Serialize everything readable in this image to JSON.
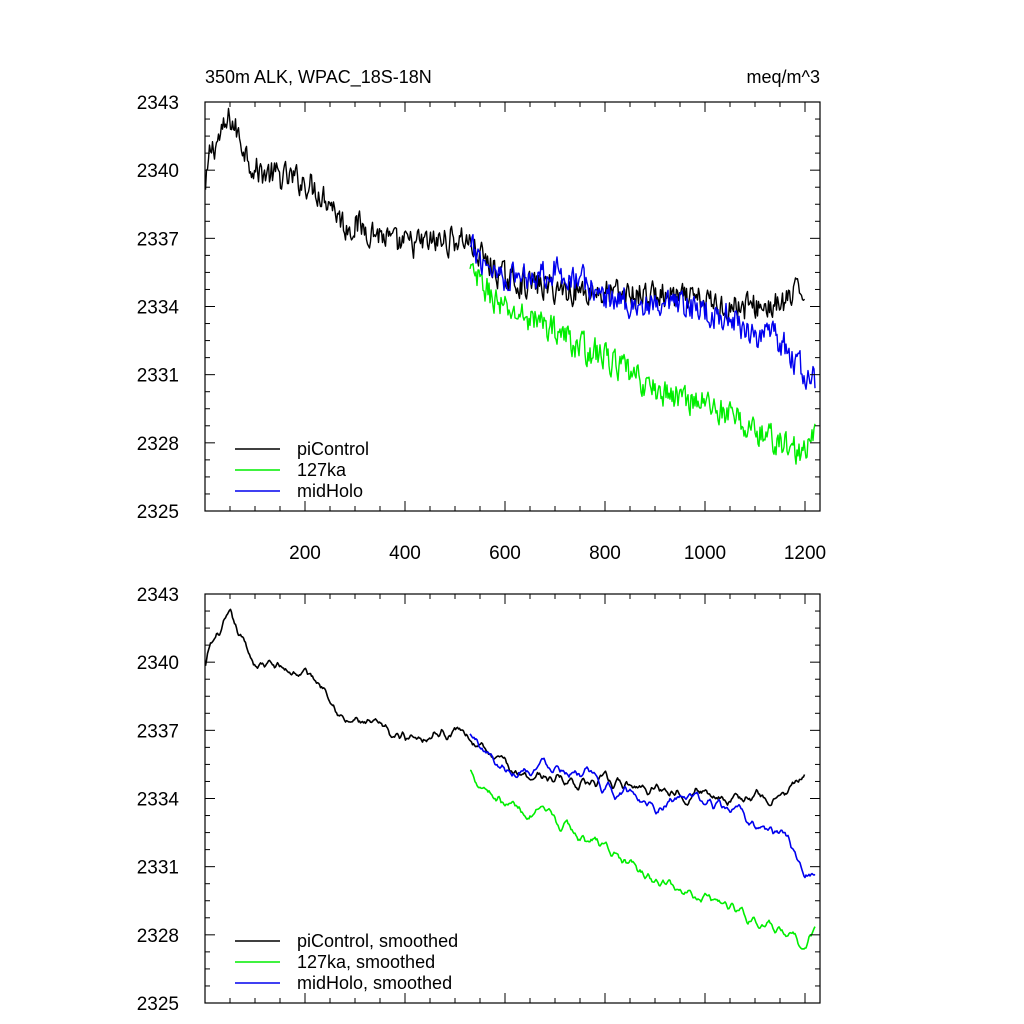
{
  "chart_data": [
    {
      "type": "line",
      "title_left": "350m ALK, WPAC_18S-18N",
      "title_right": "meq/m^3",
      "xlim": [
        0,
        1230
      ],
      "ylim": [
        2325,
        2343
      ],
      "x_ticks": [
        200,
        400,
        600,
        800,
        1000,
        1200
      ],
      "x_tick_labels_shown": true,
      "y_ticks": [
        2325,
        2328,
        2331,
        2334,
        2337,
        2340,
        2343
      ],
      "legend_position": "bottom-left",
      "smoothed": false,
      "series": [
        {
          "name": "piControl",
          "color": "#000000",
          "x_start": 1,
          "x_end": 1200,
          "anchors": [
            [
              1,
              2339.0
            ],
            [
              10,
              2340.8
            ],
            [
              40,
              2341.8
            ],
            [
              50,
              2342.3
            ],
            [
              100,
              2340.0
            ],
            [
              150,
              2339.7
            ],
            [
              200,
              2339.5
            ],
            [
              250,
              2338.7
            ],
            [
              280,
              2337.5
            ],
            [
              300,
              2337.6
            ],
            [
              350,
              2337.2
            ],
            [
              380,
              2336.7
            ],
            [
              450,
              2336.8
            ],
            [
              520,
              2337.0
            ],
            [
              560,
              2336.0
            ],
            [
              600,
              2335.2
            ],
            [
              700,
              2334.8
            ],
            [
              800,
              2334.6
            ],
            [
              850,
              2334.5
            ],
            [
              900,
              2334.5
            ],
            [
              950,
              2334.3
            ],
            [
              1000,
              2334.2
            ],
            [
              1050,
              2334.0
            ],
            [
              1100,
              2334.0
            ],
            [
              1150,
              2334.0
            ],
            [
              1200,
              2334.8
            ]
          ]
        },
        {
          "name": "127ka",
          "color": "#00ee00",
          "x_start": 530,
          "x_end": 1220,
          "anchors": [
            [
              530,
              2335.5
            ],
            [
              560,
              2334.8
            ],
            [
              600,
              2333.8
            ],
            [
              650,
              2333.5
            ],
            [
              700,
              2333.0
            ],
            [
              750,
              2332.2
            ],
            [
              800,
              2331.8
            ],
            [
              850,
              2331.0
            ],
            [
              900,
              2330.3
            ],
            [
              950,
              2330.0
            ],
            [
              1000,
              2329.8
            ],
            [
              1050,
              2329.2
            ],
            [
              1100,
              2328.5
            ],
            [
              1150,
              2328.0
            ],
            [
              1200,
              2327.5
            ],
            [
              1220,
              2328.3
            ]
          ]
        },
        {
          "name": "midHolo",
          "color": "#0000ee",
          "x_start": 530,
          "x_end": 1220,
          "anchors": [
            [
              530,
              2336.5
            ],
            [
              560,
              2336.0
            ],
            [
              600,
              2335.3
            ],
            [
              650,
              2335.4
            ],
            [
              700,
              2335.6
            ],
            [
              750,
              2335.2
            ],
            [
              800,
              2334.4
            ],
            [
              850,
              2334.2
            ],
            [
              900,
              2333.8
            ],
            [
              950,
              2334.0
            ],
            [
              1000,
              2333.8
            ],
            [
              1050,
              2333.5
            ],
            [
              1100,
              2332.8
            ],
            [
              1150,
              2332.5
            ],
            [
              1200,
              2331.0
            ],
            [
              1220,
              2330.7
            ]
          ]
        }
      ]
    },
    {
      "type": "line",
      "title_left": "",
      "title_right": "",
      "xlim": [
        0,
        1230
      ],
      "ylim": [
        2325,
        2343
      ],
      "x_ticks": [
        200,
        400,
        600,
        800,
        1000,
        1200
      ],
      "x_tick_labels_shown": false,
      "y_ticks": [
        2325,
        2328,
        2331,
        2334,
        2337,
        2340,
        2343
      ],
      "legend_position": "bottom-left",
      "smoothed": true,
      "series": [
        {
          "name": "piControl, smoothed",
          "color": "#000000",
          "x_start": 1,
          "x_end": 1200,
          "anchors": [
            [
              1,
              2339.8
            ],
            [
              10,
              2340.6
            ],
            [
              40,
              2341.6
            ],
            [
              50,
              2341.8
            ],
            [
              100,
              2340.0
            ],
            [
              150,
              2339.7
            ],
            [
              200,
              2339.5
            ],
            [
              250,
              2338.8
            ],
            [
              280,
              2337.3
            ],
            [
              300,
              2337.4
            ],
            [
              350,
              2337.0
            ],
            [
              380,
              2336.7
            ],
            [
              450,
              2336.9
            ],
            [
              520,
              2337.0
            ],
            [
              560,
              2336.0
            ],
            [
              600,
              2335.3
            ],
            [
              700,
              2334.9
            ],
            [
              800,
              2334.6
            ],
            [
              850,
              2334.5
            ],
            [
              900,
              2334.5
            ],
            [
              950,
              2334.4
            ],
            [
              1000,
              2334.3
            ],
            [
              1050,
              2334.1
            ],
            [
              1100,
              2334.0
            ],
            [
              1150,
              2334.0
            ],
            [
              1200,
              2334.9
            ]
          ]
        },
        {
          "name": "127ka, smoothed",
          "color": "#00ee00",
          "x_start": 530,
          "x_end": 1220,
          "anchors": [
            [
              530,
              2335.2
            ],
            [
              560,
              2334.6
            ],
            [
              600,
              2333.8
            ],
            [
              650,
              2333.4
            ],
            [
              700,
              2332.9
            ],
            [
              750,
              2332.3
            ],
            [
              800,
              2331.9
            ],
            [
              850,
              2331.0
            ],
            [
              900,
              2330.3
            ],
            [
              950,
              2330.0
            ],
            [
              1000,
              2329.8
            ],
            [
              1050,
              2329.3
            ],
            [
              1100,
              2328.7
            ],
            [
              1150,
              2328.0
            ],
            [
              1200,
              2327.4
            ],
            [
              1220,
              2328.2
            ]
          ]
        },
        {
          "name": "midHolo, smoothed",
          "color": "#0000ee",
          "x_start": 530,
          "x_end": 1220,
          "anchors": [
            [
              530,
              2336.8
            ],
            [
              560,
              2336.1
            ],
            [
              600,
              2335.3
            ],
            [
              650,
              2335.4
            ],
            [
              700,
              2335.6
            ],
            [
              750,
              2335.2
            ],
            [
              800,
              2334.4
            ],
            [
              850,
              2334.2
            ],
            [
              900,
              2333.8
            ],
            [
              950,
              2334.0
            ],
            [
              1000,
              2333.8
            ],
            [
              1050,
              2333.5
            ],
            [
              1100,
              2332.8
            ],
            [
              1150,
              2332.4
            ],
            [
              1200,
              2331.0
            ],
            [
              1220,
              2330.6
            ]
          ]
        }
      ]
    }
  ]
}
